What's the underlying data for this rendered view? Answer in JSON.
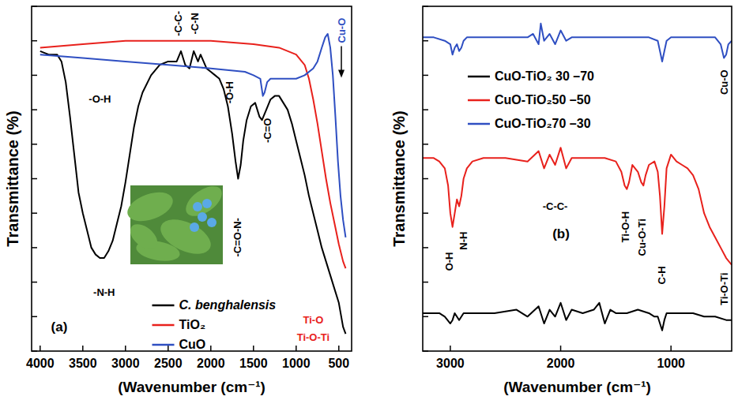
{
  "chart_data": [
    {
      "type": "line",
      "panel_label": "(a)",
      "x_label": "(Wavenumber (cm⁻¹)",
      "y_label": "Transmittance (%)",
      "xlim": [
        4100,
        350
      ],
      "xticks": [
        4000,
        3500,
        3000,
        2500,
        2000,
        1500,
        1000,
        500
      ],
      "ylim": [
        0,
        100
      ],
      "yticks": [
        0,
        10,
        20,
        30,
        40,
        50,
        60,
        70,
        80,
        90,
        100
      ],
      "tick_labels": "x",
      "grid": false,
      "legend": "lower center",
      "series": [
        {
          "name": "C. benghalensis",
          "color": "#000000",
          "x": [
            4000,
            3900,
            3800,
            3750,
            3700,
            3650,
            3600,
            3550,
            3500,
            3450,
            3400,
            3350,
            3300,
            3250,
            3200,
            3150,
            3100,
            3050,
            3000,
            2950,
            2900,
            2850,
            2800,
            2700,
            2600,
            2500,
            2400,
            2350,
            2300,
            2250,
            2200,
            2150,
            2120,
            2050,
            2000,
            1950,
            1900,
            1850,
            1800,
            1750,
            1710,
            1680,
            1650,
            1620,
            1580,
            1530,
            1480,
            1430,
            1400,
            1350,
            1300,
            1250,
            1200,
            1150,
            1100,
            1050,
            1000,
            950,
            900,
            850,
            800,
            750,
            700,
            650,
            600,
            550,
            500,
            450,
            420
          ],
          "values": [
            87,
            86,
            86,
            84,
            78,
            68,
            57,
            46,
            40,
            35,
            30,
            28,
            27,
            27,
            29,
            32,
            37,
            42,
            49,
            57,
            65,
            71,
            75,
            80,
            83,
            84,
            84,
            87,
            83,
            82,
            87,
            84,
            86,
            82,
            81,
            80,
            79,
            76,
            71,
            63,
            55,
            50,
            54,
            61,
            67,
            71,
            72,
            68,
            67,
            70,
            73,
            74,
            74,
            72,
            70,
            66,
            61,
            56,
            51,
            45,
            40,
            35,
            30,
            26,
            22,
            18,
            14,
            7,
            5
          ]
        },
        {
          "name": "TiO₂",
          "color": "#e8211c",
          "x": [
            4000,
            3500,
            3000,
            2500,
            2000,
            1500,
            1200,
            1000,
            900,
            850,
            800,
            750,
            700,
            650,
            600,
            550,
            500,
            450,
            420
          ],
          "values": [
            88,
            89,
            90,
            90,
            90,
            89,
            88,
            86,
            83,
            79,
            73,
            66,
            58,
            50,
            43,
            37,
            31,
            26,
            24
          ]
        },
        {
          "name": "CuO",
          "color": "#2f4fc2",
          "x": [
            4000,
            3500,
            3000,
            2500,
            2000,
            1600,
            1500,
            1420,
            1390,
            1370,
            1340,
            1300,
            1200,
            1000,
            900,
            800,
            750,
            700,
            660,
            630,
            600,
            570,
            540,
            510,
            480,
            450,
            420
          ],
          "values": [
            86,
            85,
            84,
            83,
            82,
            81,
            80,
            79,
            74,
            75,
            78,
            79,
            79,
            79,
            80,
            82,
            84,
            88,
            91,
            92,
            88,
            80,
            68,
            55,
            45,
            38,
            33
          ]
        }
      ],
      "annotations": [
        {
          "text": "-O-H",
          "x": 3300,
          "y": 73
        },
        {
          "text": "-N-H",
          "x": 3250,
          "y": 17
        },
        {
          "text": "-C-C-",
          "x": 2380,
          "y": 95
        },
        {
          "text": "-C-N",
          "x": 2190,
          "y": 95
        },
        {
          "text": "-O-H",
          "x": 1780,
          "y": 75
        },
        {
          "text": "-C=O-N-",
          "x": 1690,
          "y": 33
        },
        {
          "text": "-C=O",
          "x": 1340,
          "y": 64
        },
        {
          "text": "Cu-O",
          "x": 470,
          "y": 93,
          "color": "#2f4fc2"
        },
        {
          "text": "Ti-O",
          "x": 800,
          "y": 9,
          "color": "#e8211c"
        },
        {
          "text": "Ti-O-Ti",
          "x": 800,
          "y": 4,
          "color": "#e8211c"
        }
      ]
    },
    {
      "type": "line",
      "panel_label": "(b)",
      "x_label": "(Wavenumber (cm⁻¹)",
      "y_label": "Transmittance (%)",
      "xlim": [
        3250,
        450
      ],
      "xticks": [
        3000,
        2000,
        1000
      ],
      "ylim": [
        0,
        100
      ],
      "yticks": [
        0,
        10,
        20,
        30,
        40,
        50,
        60,
        70,
        80,
        90,
        100
      ],
      "tick_labels": "x",
      "grid": false,
      "legend": "upper left",
      "series": [
        {
          "name": "CuO-TiO₂ 30 –70",
          "color": "#000000",
          "x": [
            3250,
            3100,
            3050,
            3000,
            2980,
            2960,
            2920,
            2880,
            2800,
            2600,
            2400,
            2300,
            2200,
            2150,
            2100,
            2050,
            2000,
            1950,
            1900,
            1800,
            1700,
            1650,
            1600,
            1550,
            1500,
            1400,
            1300,
            1200,
            1150,
            1120,
            1100,
            1080,
            1060,
            1040,
            1000,
            900,
            800,
            700,
            600,
            500,
            450
          ],
          "values": [
            11,
            11,
            10,
            8,
            9,
            11,
            9,
            11,
            11,
            11,
            12,
            10,
            13,
            8,
            12,
            10,
            14,
            9,
            12,
            11,
            12,
            14,
            8,
            12,
            11,
            11,
            12,
            11,
            10,
            10,
            8,
            6,
            9,
            11,
            11,
            11,
            11,
            10,
            10,
            9,
            9
          ]
        },
        {
          "name": "CuO-TiO₂50 –50",
          "color": "#e8211c",
          "x": [
            3250,
            3150,
            3100,
            3050,
            3020,
            3000,
            2980,
            2960,
            2940,
            2920,
            2900,
            2880,
            2850,
            2800,
            2700,
            2500,
            2300,
            2200,
            2150,
            2100,
            2050,
            2000,
            1950,
            1900,
            1800,
            1700,
            1600,
            1500,
            1450,
            1420,
            1400,
            1380,
            1350,
            1300,
            1270,
            1250,
            1230,
            1200,
            1150,
            1120,
            1100,
            1080,
            1060,
            1040,
            1000,
            950,
            900,
            850,
            800,
            750,
            700,
            650,
            600,
            550,
            500,
            450
          ],
          "values": [
            56,
            56,
            55,
            53,
            48,
            40,
            36,
            40,
            44,
            42,
            45,
            50,
            53,
            55,
            56,
            56,
            55,
            58,
            53,
            57,
            54,
            59,
            53,
            56,
            56,
            56,
            56,
            55,
            52,
            48,
            47,
            49,
            54,
            52,
            49,
            48,
            51,
            54,
            55,
            52,
            45,
            34,
            42,
            53,
            57,
            55,
            54,
            53,
            51,
            47,
            40,
            36,
            33,
            30,
            27,
            25
          ]
        },
        {
          "name": "CuO-TiO₂70 –30",
          "color": "#2f4fc2",
          "x": [
            3250,
            3150,
            3050,
            3000,
            2980,
            2960,
            2940,
            2920,
            2900,
            2880,
            2850,
            2800,
            2600,
            2400,
            2300,
            2250,
            2200,
            2180,
            2150,
            2100,
            2050,
            2000,
            1950,
            1900,
            1800,
            1600,
            1400,
            1200,
            1120,
            1100,
            1080,
            1060,
            1040,
            1000,
            900,
            800,
            700,
            600,
            550,
            520,
            500,
            480,
            450
          ],
          "values": [
            91,
            91,
            90,
            89,
            86,
            88,
            89,
            87,
            88,
            90,
            91,
            91,
            91,
            91,
            91,
            92,
            89,
            95,
            90,
            92,
            89,
            93,
            90,
            91,
            91,
            91,
            91,
            91,
            90,
            87,
            84,
            87,
            90,
            91,
            91,
            91,
            91,
            91,
            89,
            85,
            86,
            89,
            90
          ]
        }
      ],
      "annotations": [
        {
          "text": "-C-C-",
          "x": 2050,
          "y": 42
        },
        {
          "text": "O-H",
          "x": 3010,
          "y": 26
        },
        {
          "text": "N-H",
          "x": 2880,
          "y": 32
        },
        {
          "text": "Ti-O-H",
          "x": 1410,
          "y": 36
        },
        {
          "text": "Cu-O-Ti",
          "x": 1260,
          "y": 33
        },
        {
          "text": "C-H",
          "x": 1085,
          "y": 22
        },
        {
          "text": "Ti-O-Ti",
          "x": 520,
          "y": 18
        },
        {
          "text": "Cu-O",
          "x": 520,
          "y": 78
        }
      ]
    }
  ]
}
